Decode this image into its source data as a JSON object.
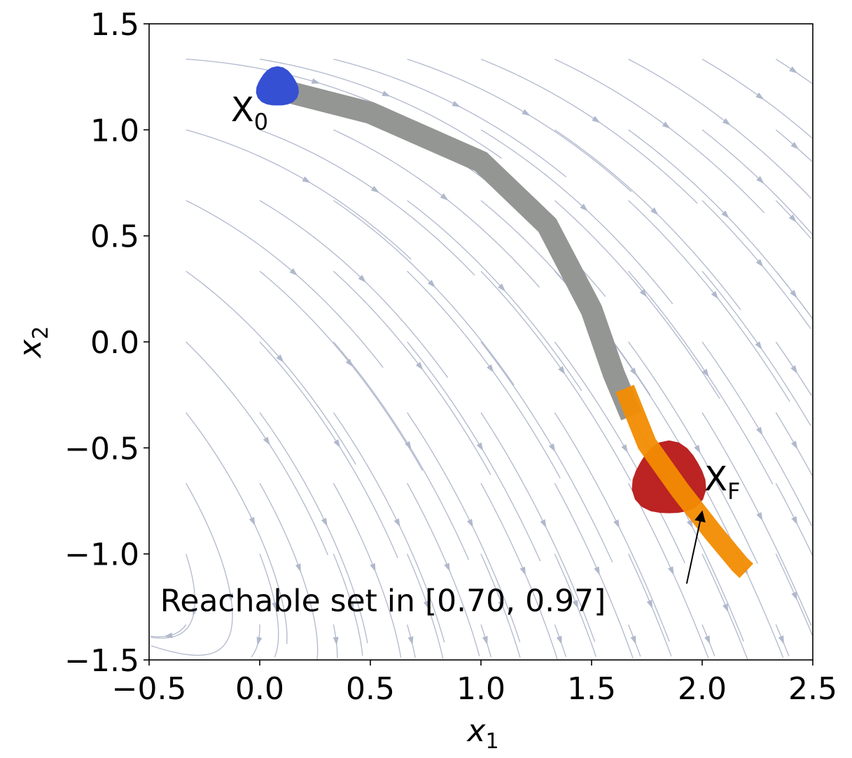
{
  "chart_data": {
    "type": "reachability_phase_portrait",
    "xlabel_base": "x",
    "xlabel_sub": "1",
    "ylabel_base": "x",
    "ylabel_sub": "2",
    "xlim": [
      -0.5,
      2.5
    ],
    "ylim": [
      -1.5,
      1.5
    ],
    "xticks": [
      -0.5,
      0.0,
      0.5,
      1.0,
      1.5,
      2.0,
      2.5
    ],
    "xtick_labels": [
      "−0.5",
      "0.0",
      "0.5",
      "1.0",
      "1.5",
      "2.0",
      "2.5"
    ],
    "yticks": [
      1.5,
      1.0,
      0.5,
      0.0,
      -0.5,
      -1.0,
      -1.5
    ],
    "ytick_labels": [
      "1.5",
      "1.0",
      "0.5",
      "0.0",
      "−0.5",
      "−1.0",
      "−1.5"
    ],
    "grid": false,
    "initial_set": {
      "label_base": "X",
      "label_sub": "0",
      "color": "#3650d3",
      "center": [
        0.08,
        1.2
      ],
      "label_at": [
        -0.13,
        1.04
      ]
    },
    "target_set": {
      "label_base": "X",
      "label_sub": "F",
      "color": "#bc2323",
      "center": [
        1.85,
        -0.65
      ],
      "label_at": [
        2.01,
        -0.7
      ]
    },
    "trajectory_tube": {
      "color": "#949694",
      "centerline": [
        [
          0.05,
          1.2
        ],
        [
          0.5,
          1.08
        ],
        [
          1.0,
          0.85
        ],
        [
          1.3,
          0.55
        ],
        [
          1.5,
          0.15
        ],
        [
          1.6,
          -0.15
        ],
        [
          1.68,
          -0.35
        ]
      ],
      "width": 0.1
    },
    "reachable_set": {
      "color": "#f28c02",
      "centerline": [
        [
          1.65,
          -0.22
        ],
        [
          1.75,
          -0.48
        ],
        [
          1.9,
          -0.7
        ],
        [
          2.05,
          -0.9
        ],
        [
          2.17,
          -1.05
        ],
        [
          2.2,
          -1.08
        ]
      ],
      "annotation": "Reachable set in [0.70, 0.97]",
      "annotation_at": [
        -0.45,
        -1.27
      ],
      "arrow_from": [
        1.93,
        -1.14
      ],
      "arrow_to": [
        2.0,
        -0.8
      ]
    },
    "streamlines": {
      "color": "#b0b8cc"
    }
  }
}
